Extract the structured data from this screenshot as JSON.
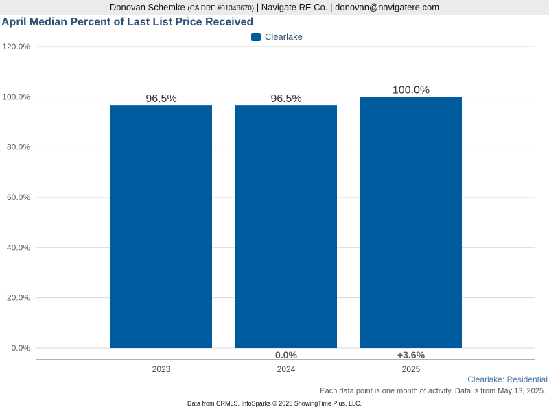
{
  "header": {
    "agent_name": "Donovan Schemke",
    "license": "(CA DRE #01348670)",
    "company_contact": "| Navigate RE Co. | donovan@navigatere.com"
  },
  "colors": {
    "bar": "#005a9e",
    "grid": "#d9d9d9",
    "axis_text": "#555555"
  },
  "chart_data": {
    "type": "bar",
    "title": "April Median Percent of Last List Price Received",
    "categories": [
      "2023",
      "2024",
      "2025"
    ],
    "series": [
      {
        "name": "Clearlake",
        "values": [
          96.5,
          96.5,
          100.0
        ]
      }
    ],
    "value_labels": [
      "96.5%",
      "96.5%",
      "100.0%"
    ],
    "change_labels": [
      "",
      "0.0%",
      "+3.6%"
    ],
    "ylim": [
      0,
      120
    ],
    "yticks": [
      0,
      20,
      40,
      60,
      80,
      100,
      120
    ],
    "ytick_labels": [
      "0.0%",
      "20.0%",
      "40.0%",
      "60.0%",
      "80.0%",
      "100.0%",
      "120.0%"
    ],
    "grid": true,
    "legend_position": "top-center"
  },
  "region_label": "Clearlake: Residential",
  "note": "Each data point is one month of activity. Data is from May 13, 2025.",
  "footer": "Data from CRMLS. InfoSparks © 2025 ShowingTime Plus, LLC."
}
